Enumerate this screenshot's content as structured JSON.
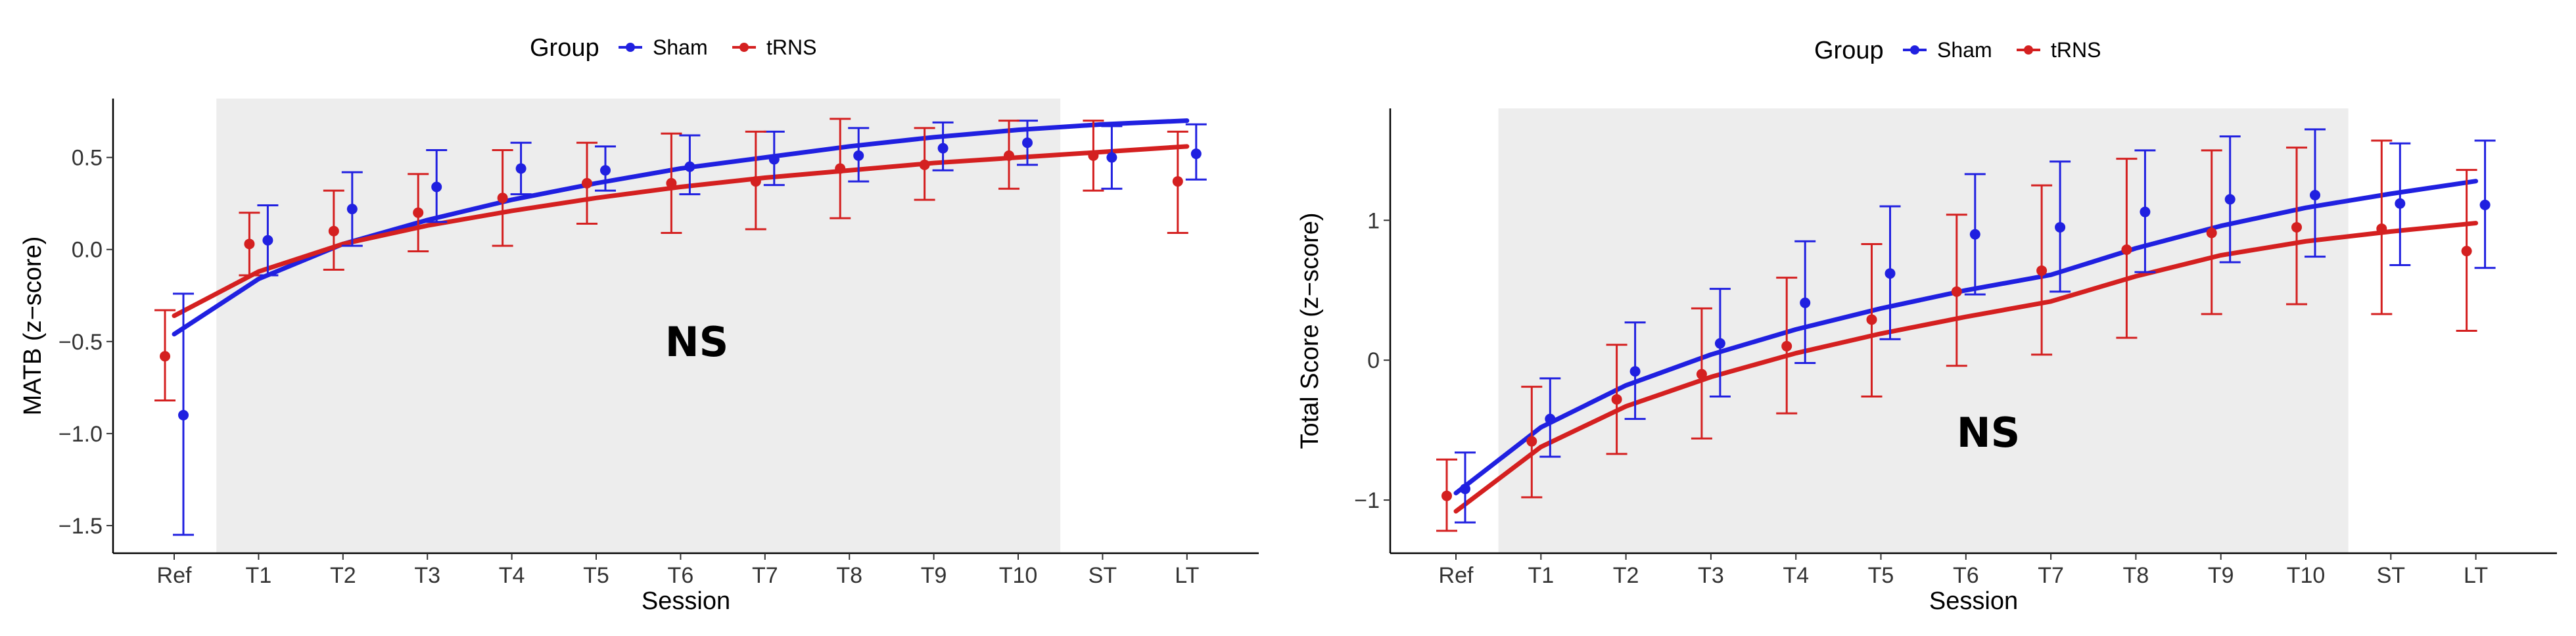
{
  "chart_data": [
    {
      "type": "line",
      "xlabel": "Session",
      "ylabel": "MATB (z−score)",
      "categories": [
        "Ref",
        "T1",
        "T2",
        "T3",
        "T4",
        "T5",
        "T6",
        "T7",
        "T8",
        "T9",
        "T10",
        "ST",
        "LT"
      ],
      "ylim": [
        -1.65,
        0.82
      ],
      "yticks": [
        -1.5,
        -1.0,
        -0.5,
        0.0,
        0.5
      ],
      "ytick_labels": [
        "−1.5",
        "−1.0",
        "−0.5",
        "0.0",
        "0.5"
      ],
      "shaded_region": [
        "T1",
        "T10"
      ],
      "annotation": "NS",
      "legend": {
        "title": "Group",
        "placement": "top-center"
      },
      "series": [
        {
          "name": "Sham",
          "color": "#2020e0",
          "values": [
            -0.9,
            0.05,
            0.22,
            0.34,
            0.44,
            0.43,
            0.45,
            0.49,
            0.51,
            0.55,
            0.58,
            0.5,
            0.52
          ],
          "lower": [
            -1.55,
            -0.14,
            0.02,
            0.15,
            0.3,
            0.32,
            0.3,
            0.35,
            0.37,
            0.43,
            0.46,
            0.33,
            0.38
          ],
          "upper": [
            -0.24,
            0.24,
            0.42,
            0.54,
            0.58,
            0.56,
            0.62,
            0.64,
            0.66,
            0.69,
            0.7,
            0.67,
            0.68
          ],
          "fit": [
            -0.46,
            -0.16,
            0.03,
            0.16,
            0.27,
            0.36,
            0.44,
            0.5,
            0.56,
            0.61,
            0.65,
            0.68,
            0.7
          ]
        },
        {
          "name": "tRNS",
          "color": "#d42020",
          "values": [
            -0.58,
            0.03,
            0.1,
            0.2,
            0.28,
            0.36,
            0.36,
            0.37,
            0.44,
            0.46,
            0.51,
            0.51,
            0.37
          ],
          "lower": [
            -0.82,
            -0.14,
            -0.11,
            -0.01,
            0.02,
            0.14,
            0.09,
            0.11,
            0.17,
            0.27,
            0.33,
            0.32,
            0.09
          ],
          "upper": [
            -0.33,
            0.2,
            0.32,
            0.41,
            0.54,
            0.58,
            0.63,
            0.64,
            0.71,
            0.66,
            0.7,
            0.7,
            0.64
          ],
          "fit": [
            -0.36,
            -0.12,
            0.03,
            0.13,
            0.21,
            0.28,
            0.34,
            0.39,
            0.43,
            0.47,
            0.5,
            0.53,
            0.56
          ]
        }
      ]
    },
    {
      "type": "line",
      "xlabel": "Session",
      "ylabel": "Total Score (z−score)",
      "categories": [
        "Ref",
        "T1",
        "T2",
        "T3",
        "T4",
        "T5",
        "T6",
        "T7",
        "T8",
        "T9",
        "T10",
        "ST",
        "LT"
      ],
      "ylim": [
        -1.38,
        1.8
      ],
      "yticks": [
        -1,
        0,
        1
      ],
      "ytick_labels": [
        "−1",
        "0",
        "1"
      ],
      "shaded_region": [
        "T1",
        "T10"
      ],
      "annotation": "NS",
      "legend": {
        "title": "Group",
        "placement": "top-center"
      },
      "series": [
        {
          "name": "Sham",
          "color": "#2020e0",
          "values": [
            -0.92,
            -0.42,
            -0.08,
            0.12,
            0.41,
            0.62,
            0.9,
            0.95,
            1.06,
            1.15,
            1.18,
            1.12,
            1.11
          ],
          "lower": [
            -1.16,
            -0.69,
            -0.42,
            -0.26,
            -0.02,
            0.15,
            0.47,
            0.49,
            0.63,
            0.7,
            0.74,
            0.68,
            0.66
          ],
          "upper": [
            -0.66,
            -0.13,
            0.27,
            0.51,
            0.85,
            1.1,
            1.33,
            1.42,
            1.5,
            1.6,
            1.65,
            1.55,
            1.57
          ],
          "fit": [
            -0.95,
            -0.48,
            -0.18,
            0.04,
            0.22,
            0.37,
            0.5,
            0.61,
            0.8,
            0.96,
            1.09,
            1.19,
            1.28
          ]
        },
        {
          "name": "tRNS",
          "color": "#d42020",
          "values": [
            -0.97,
            -0.58,
            -0.28,
            -0.1,
            0.1,
            0.29,
            0.49,
            0.64,
            0.79,
            0.91,
            0.95,
            0.94,
            0.78
          ],
          "lower": [
            -1.22,
            -0.98,
            -0.67,
            -0.56,
            -0.38,
            -0.26,
            -0.04,
            0.04,
            0.16,
            0.33,
            0.4,
            0.33,
            0.21
          ],
          "upper": [
            -0.71,
            -0.19,
            0.11,
            0.37,
            0.59,
            0.83,
            1.04,
            1.25,
            1.44,
            1.5,
            1.52,
            1.57,
            1.36
          ],
          "fit": [
            -1.08,
            -0.62,
            -0.33,
            -0.12,
            0.05,
            0.19,
            0.31,
            0.42,
            0.6,
            0.75,
            0.85,
            0.92,
            0.98
          ]
        }
      ]
    }
  ]
}
